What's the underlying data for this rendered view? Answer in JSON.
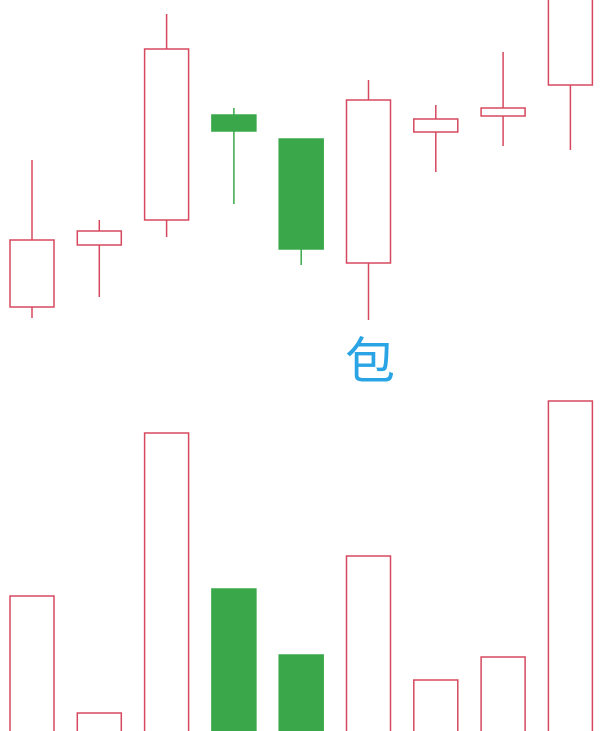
{
  "chart_data": {
    "type": "candlestick",
    "annotation": "包",
    "open": [
      23,
      85,
      110,
      215,
      191,
      67,
      198,
      214,
      245
    ],
    "high": [
      170,
      110,
      316,
      222,
      191,
      250,
      225,
      278,
      345
    ],
    "low": [
      12,
      33,
      93,
      126,
      65,
      10,
      158,
      184,
      180
    ],
    "close": [
      90,
      99,
      281,
      199,
      81,
      230,
      211,
      222,
      335
    ],
    "volume": [
      135,
      18,
      298,
      142,
      76,
      175,
      51,
      74,
      330
    ],
    "up_color": "#d6485e",
    "down_color": "#3aa84a",
    "ylim": [
      0,
      330
    ],
    "volume_ylim": [
      0,
      330
    ]
  }
}
